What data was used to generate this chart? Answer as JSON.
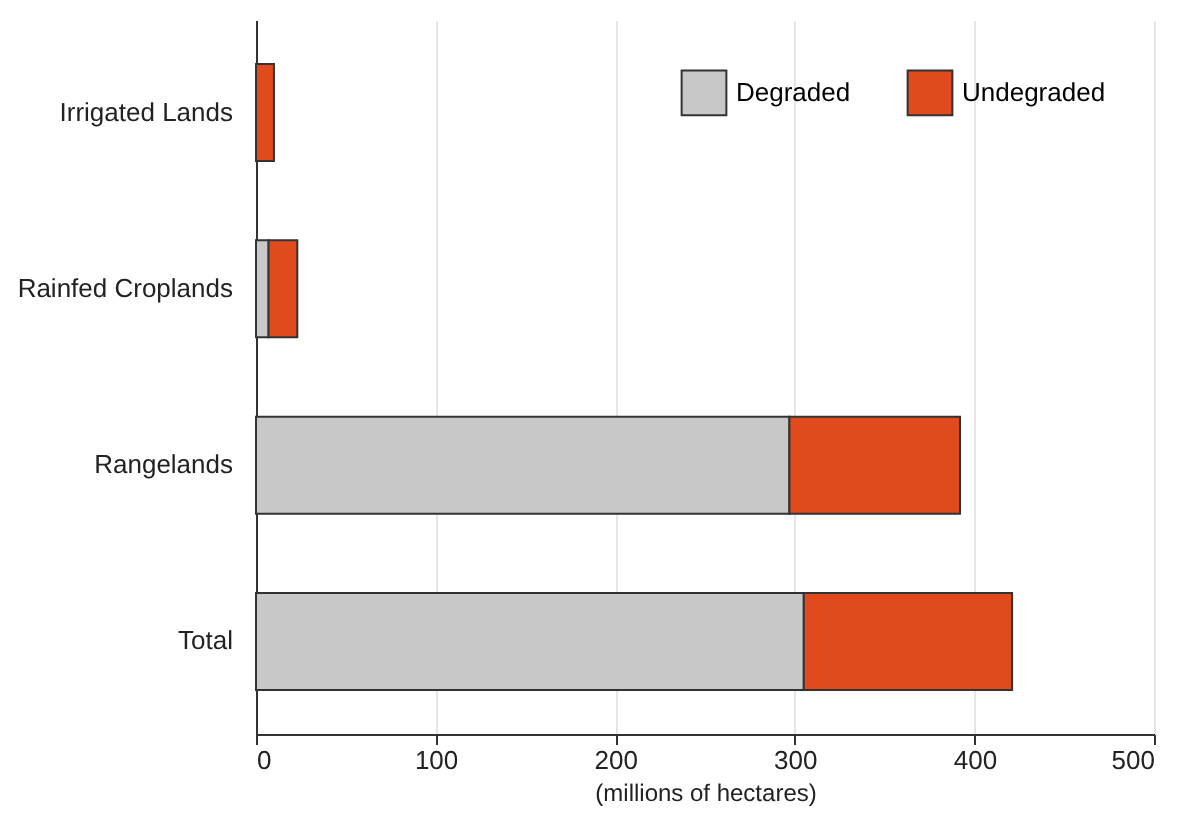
{
  "chart_data": {
    "type": "bar",
    "orientation": "horizontal",
    "stacked": true,
    "xlabel": "(millions of hectares)",
    "categories": [
      "Irrigated Lands",
      "Rainfed Croplands",
      "Rangelands",
      "Total"
    ],
    "series": [
      {
        "name": "Degraded",
        "color": "#c8c8c8",
        "values": [
          null,
          7,
          297,
          305
        ]
      },
      {
        "name": "Undegraded",
        "color": "#e04a1c",
        "values": [
          10,
          16,
          95,
          116
        ]
      }
    ],
    "xlim": [
      0,
      500
    ],
    "xticks": [
      0,
      100,
      200,
      300,
      400,
      500
    ],
    "grid": "x",
    "legend": "top right"
  }
}
